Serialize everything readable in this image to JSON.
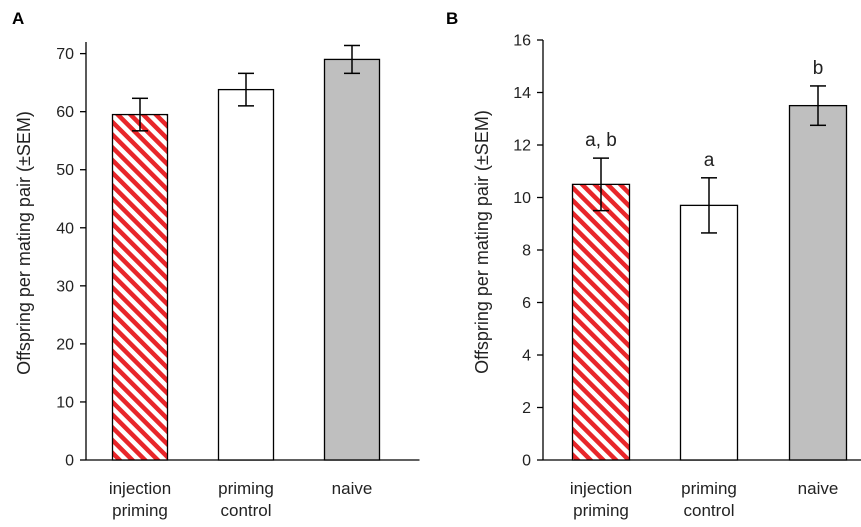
{
  "chart_data": [
    {
      "panel": "A",
      "type": "bar",
      "ylabel": "Offspring  per mating pair (±SEM)",
      "ylim": [
        0,
        72
      ],
      "yticks": [
        0,
        10,
        20,
        30,
        40,
        50,
        60,
        70
      ],
      "categories": [
        "injection priming",
        "priming control",
        "naive"
      ],
      "category_lines": [
        [
          "injection",
          "priming"
        ],
        [
          "priming",
          "control"
        ],
        [
          "naive"
        ]
      ],
      "values": [
        59.5,
        63.8,
        69.0
      ],
      "errors": [
        2.8,
        2.8,
        2.4
      ],
      "annotations": [
        "",
        "",
        ""
      ],
      "fills": [
        "hatch-red",
        "white",
        "#bfbfbf"
      ]
    },
    {
      "panel": "B",
      "type": "bar",
      "ylabel": "Offspring  per mating pair (±SEM)",
      "ylim": [
        0,
        16
      ],
      "yticks": [
        0,
        2,
        4,
        6,
        8,
        10,
        12,
        14,
        16
      ],
      "categories": [
        "injection priming",
        "priming control",
        "naive"
      ],
      "category_lines": [
        [
          "injection",
          "priming"
        ],
        [
          "priming",
          "control"
        ],
        [
          "naive"
        ]
      ],
      "values": [
        10.5,
        9.7,
        13.5
      ],
      "errors": [
        1.0,
        1.05,
        0.75
      ],
      "annotations": [
        "a, b",
        "a",
        "b"
      ],
      "fills": [
        "hatch-red",
        "white",
        "#bfbfbf"
      ]
    }
  ]
}
